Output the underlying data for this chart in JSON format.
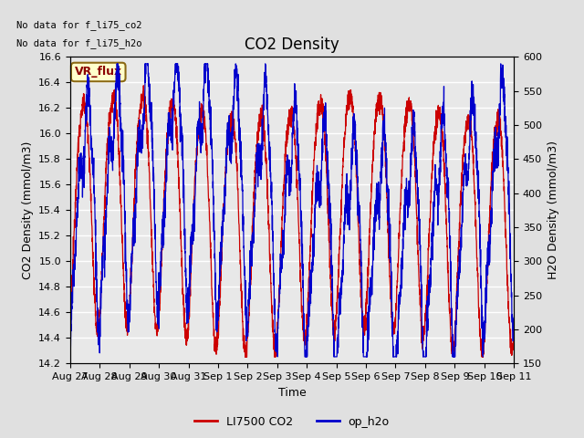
{
  "title": "CO2 Density",
  "xlabel": "Time",
  "ylabel_left": "CO2 Density (mmol/m3)",
  "ylabel_right": "H2O Density (mmol/m3)",
  "text_no_data_1": "No data for f_li75_co2",
  "text_no_data_2": "No data for f_li75_h2o",
  "vr_flux_label": "VR_flux",
  "legend_entries": [
    "LI7500 CO2",
    "op_h2o"
  ],
  "legend_colors": [
    "#cc0000",
    "#0000cc"
  ],
  "co2_ylim": [
    14.2,
    16.6
  ],
  "h2o_ylim": [
    150,
    600
  ],
  "co2_yticks": [
    14.2,
    14.4,
    14.6,
    14.8,
    15.0,
    15.2,
    15.4,
    15.6,
    15.8,
    16.0,
    16.2,
    16.4,
    16.6
  ],
  "h2o_yticks": [
    150,
    200,
    250,
    300,
    350,
    400,
    450,
    500,
    550,
    600
  ],
  "xtick_labels": [
    "Aug 27",
    "Aug 28",
    "Aug 29",
    "Aug 30",
    "Aug 31",
    "Sep 1",
    "Sep 2",
    "Sep 3",
    "Sep 4",
    "Sep 5",
    "Sep 6",
    "Sep 7",
    "Sep 8",
    "Sep 9",
    "Sep 10",
    "Sep 11"
  ],
  "bg_color": "#e0e0e0",
  "plot_bg_color": "#e8e8e8",
  "grid_color": "#ffffff",
  "co2_color": "#cc0000",
  "h2o_color": "#0000cc",
  "n_points": 3000,
  "days": 15,
  "co2_base": 15.4,
  "co2_amp": 0.9,
  "h2o_base": 370,
  "h2o_amp": 150
}
